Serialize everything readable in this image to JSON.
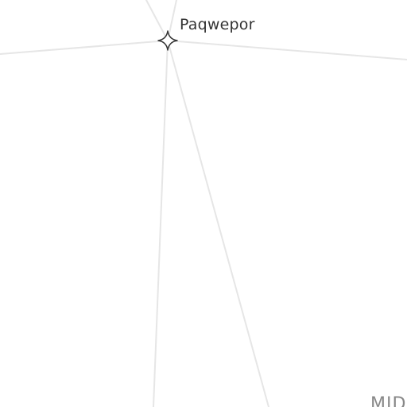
{
  "map": {
    "place": {
      "name": "Paqwepor",
      "marker_icon": "four-point-star-icon",
      "marker_color": "#333333"
    },
    "region_label": "MID",
    "road_color": "#e6e6e6",
    "background": "#ffffff"
  }
}
